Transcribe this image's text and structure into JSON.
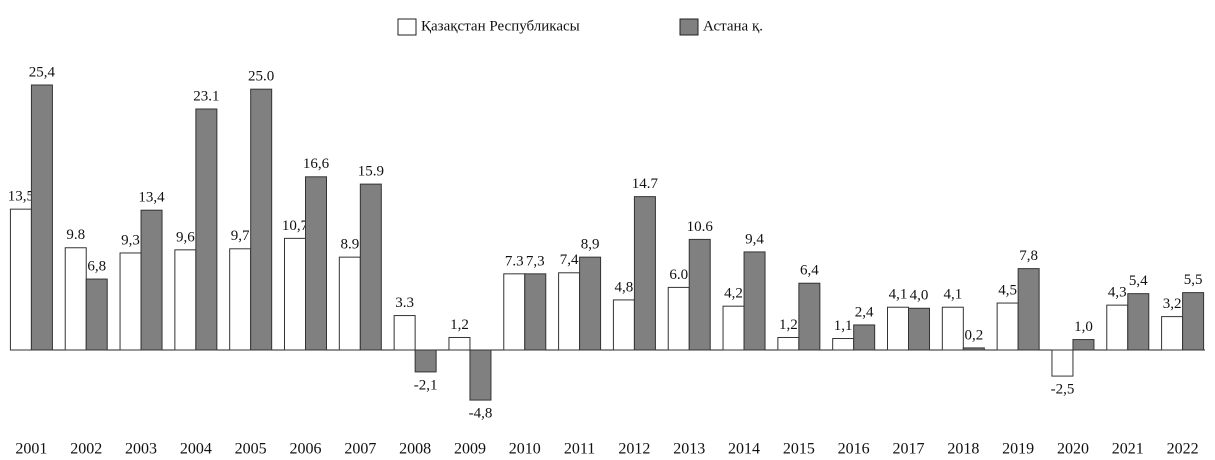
{
  "chart_data": {
    "type": "bar",
    "categories": [
      "2001",
      "2002",
      "2003",
      "2004",
      "2005",
      "2006",
      "2007",
      "2008",
      "2009",
      "2010",
      "2011",
      "2012",
      "2013",
      "2014",
      "2015",
      "2016",
      "2017",
      "2018",
      "2019",
      "2020",
      "2021",
      "2022"
    ],
    "series": [
      {
        "name": "Қазақстан Республикасы",
        "color": "#ffffff",
        "values": [
          13.5,
          9.8,
          9.3,
          9.6,
          9.7,
          10.7,
          8.9,
          3.3,
          1.2,
          7.3,
          7.4,
          4.8,
          6.0,
          4.2,
          1.2,
          1.1,
          4.1,
          4.1,
          4.5,
          -2.5,
          4.3,
          3.2
        ],
        "value_labels": [
          "13,5",
          "9.8",
          "9,3",
          "9,6",
          "9,7",
          "10,7",
          "8.9",
          "3.3",
          "1,2",
          "7.3",
          "7,4",
          "4,8",
          "6.0",
          "4,2",
          "1,2",
          "1,1",
          "4,1",
          "4,1",
          "4,5",
          "-2,5",
          "4,3",
          "3,2"
        ]
      },
      {
        "name": "Астана қ.",
        "color": "#808080",
        "values": [
          25.4,
          6.8,
          13.4,
          23.1,
          25.0,
          16.6,
          15.9,
          -2.1,
          -4.8,
          7.3,
          8.9,
          14.7,
          10.6,
          9.4,
          6.4,
          2.4,
          4.0,
          0.2,
          7.8,
          1.0,
          5.4,
          5.5
        ],
        "value_labels": [
          "25,4",
          "6,8",
          "13,4",
          "23.1",
          "25.0",
          "16,6",
          "15.9",
          "-2,1",
          "-4,8",
          "7,3",
          "8,9",
          "14.7",
          "10.6",
          "9,4",
          "6,4",
          "2,4",
          "4,0",
          "0,2",
          "7,8",
          "1,0",
          "5,4",
          "5,5"
        ]
      }
    ],
    "legend": "top"
  }
}
